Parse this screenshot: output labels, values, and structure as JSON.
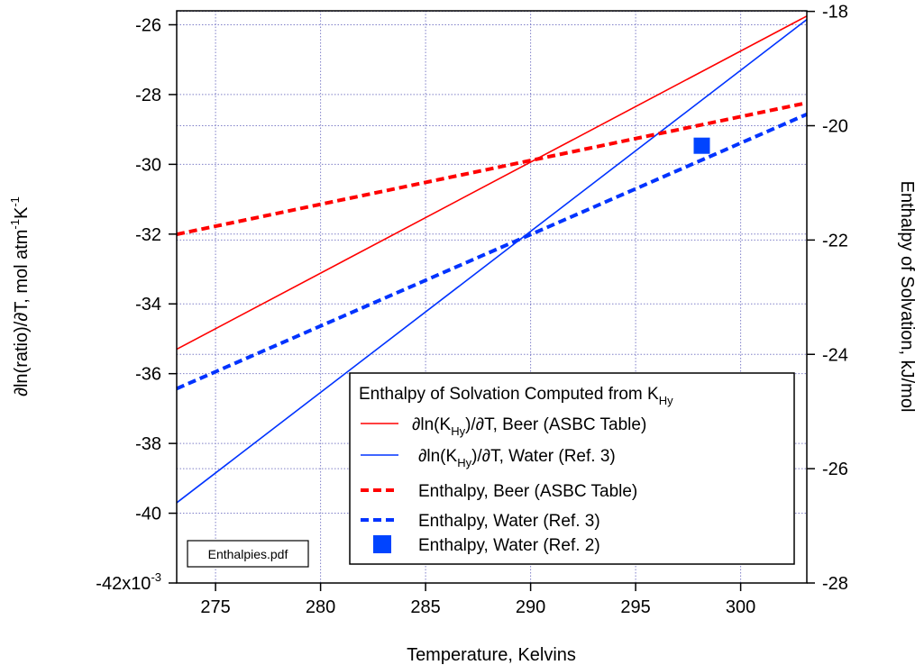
{
  "chart_data": {
    "type": "line",
    "x_range": [
      273.15,
      303.15
    ],
    "x_ticks": [
      275,
      280,
      285,
      290,
      295,
      300
    ],
    "xlabel": "Temperature, Kelvins",
    "y_left": {
      "label": "∂ln(ratio)/∂T, mol atm-1K-1",
      "range": [
        -42,
        -25.6
      ],
      "ticks": [
        -42,
        -40,
        -38,
        -36,
        -34,
        -32,
        -30,
        -28,
        -26
      ],
      "tick_labels": [
        "-42x10-3",
        "-40",
        "-38",
        "-36",
        "-34",
        "-32",
        "-30",
        "-28",
        "-26"
      ]
    },
    "y_right": {
      "label": "Enthalpy of Solvation, kJ/mol",
      "range": [
        -28,
        -17.99
      ],
      "ticks": [
        -28,
        -26,
        -24,
        -22,
        -20,
        -18
      ],
      "tick_labels": [
        "-28",
        "-26",
        "-24",
        "-22",
        "-20",
        "-18"
      ]
    },
    "grid": true,
    "legend": {
      "position": "bottom-right",
      "title": "Enthalpy of Solvation Computed from KHy",
      "entries": [
        "∂ln(KHy)/∂T, Beer (ASBC Table)",
        "∂ln(KHy)/∂T, Water (Ref. 3)",
        "Enthalpy, Beer (ASBC Table)",
        "Enthalpy, Water (Ref. 3)",
        "Enthalpy, Water (Ref. 2)"
      ]
    },
    "series": [
      {
        "name": "∂ln(KHy)/∂T, Beer (ASBC Table)",
        "axis": "left",
        "style": "solid",
        "color": "#ff0000",
        "x": [
          273.15,
          303.15
        ],
        "y": [
          -35.3,
          -25.75
        ]
      },
      {
        "name": "∂ln(KHy)/∂T, Water (Ref. 3)",
        "axis": "left",
        "style": "solid",
        "color": "#0033ff",
        "x": [
          273.15,
          303.15
        ],
        "y": [
          -39.7,
          -25.85
        ]
      },
      {
        "name": "Enthalpy, Beer (ASBC Table)",
        "axis": "right",
        "style": "dashed",
        "color": "#ff0000",
        "x": [
          273.15,
          303.15
        ],
        "y": [
          -21.9,
          -19.6
        ]
      },
      {
        "name": "Enthalpy, Water (Ref. 3)",
        "axis": "right",
        "style": "dashed",
        "color": "#0033ff",
        "x": [
          273.15,
          303.15
        ],
        "y": [
          -24.6,
          -19.8
        ]
      },
      {
        "name": "Enthalpy, Water (Ref. 2)",
        "axis": "right",
        "style": "marker",
        "color": "#0044ff",
        "x": [
          298.15
        ],
        "y": [
          -20.35
        ]
      }
    ],
    "annotation": "Enthalpies.pdf"
  }
}
